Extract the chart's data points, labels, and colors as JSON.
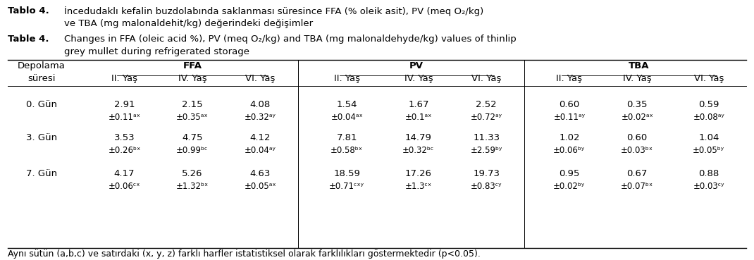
{
  "title_tr": "Tablo 4.",
  "title_tr_text": " İncedudaöklı kefalin buzdolabında saklanması süresince FFA (% oleik asit), PV (meq O₂/kg)",
  "title_tr_line2": "ve TBA (mg malonaldehit/kg) değerindeki değişimler",
  "title_en": "Table 4.",
  "title_en_text": "  Changes in FFA (oleic acid %), PV (meq O₂/kg) and TBA (mg malonaldehyde/kg) values of thinlip",
  "title_en_line2": "grey mullet during refrigerated storage",
  "col_header1": "Depolama",
  "col_header1b": "süresi",
  "group_headers": [
    "FFA",
    "PV",
    "TBA"
  ],
  "sub_headers": [
    "II. Yaş",
    "IV. Yaş",
    "VI. Yaş"
  ],
  "row_labels": [
    "0. Gün",
    "3. Gün",
    "7. Gün"
  ],
  "data": {
    "FFA": {
      "0. Gün": {
        "vals": [
          "2.91",
          "2.15",
          "4.08"
        ],
        "errs": [
          "±0.11ᵃˣ",
          "±0.35ᵃˣ",
          "±0.32ᵃʸ"
        ]
      },
      "3. Gün": {
        "vals": [
          "3.53",
          "4.75",
          "4.12"
        ],
        "errs": [
          "±0.26ᵇˣ",
          "±0.99ᵇᶜ",
          "±0.04ᵃʸ"
        ]
      },
      "7. Gün": {
        "vals": [
          "4.17",
          "5.26",
          "4.63"
        ],
        "errs": [
          "±0.06ᶜˣ",
          "±1.32ᵇˣ",
          "±0.05ᵃˣ"
        ]
      }
    },
    "PV": {
      "0. Gün": {
        "vals": [
          "1.54",
          "1.67",
          "2.52"
        ],
        "errs": [
          "±0.04ᵃˣ",
          "±0.1ᵃˣ",
          "±0.72ᵃʸ"
        ]
      },
      "3. Gün": {
        "vals": [
          "7.81",
          "14.79",
          "11.33"
        ],
        "errs": [
          "±0.58ᵇˣ",
          "±0.32ᵇᶜ",
          "±2.59ᵇʸ"
        ]
      },
      "7. Gün": {
        "vals": [
          "18.59",
          "17.26",
          "19.73"
        ],
        "errs": [
          "±0.71ᶜˣʸ",
          "±1.3ᶜˣ",
          "±0.83ᶜʸ"
        ]
      }
    },
    "TBA": {
      "0. Gün": {
        "vals": [
          "0.60",
          "0.35",
          "0.59"
        ],
        "errs": [
          "±0.11ᵃʸ",
          "±0.02ᵃˣ",
          "±0.08ᵃʸ"
        ]
      },
      "3. Gün": {
        "vals": [
          "1.02",
          "0.60",
          "1.04"
        ],
        "errs": [
          "±0.06ᵇʸ",
          "±0.03ᵇˣ",
          "±0.05ᵇʸ"
        ]
      },
      "7. Gün": {
        "vals": [
          "0.95",
          "0.67",
          "0.88"
        ],
        "errs": [
          "±0.02ᵇʸ",
          "±0.07ᵇˣ",
          "±0.03ᶜʸ"
        ]
      }
    }
  },
  "footnote": "Aynı sütün (a,b,c) ve satırdaki (x, y, z) farklı harfler istatistiksel olarak farklılıkları göstermektedir (p<0.05).",
  "bg_color": "#ffffff",
  "text_color": "#000000",
  "font_size": 9.5
}
